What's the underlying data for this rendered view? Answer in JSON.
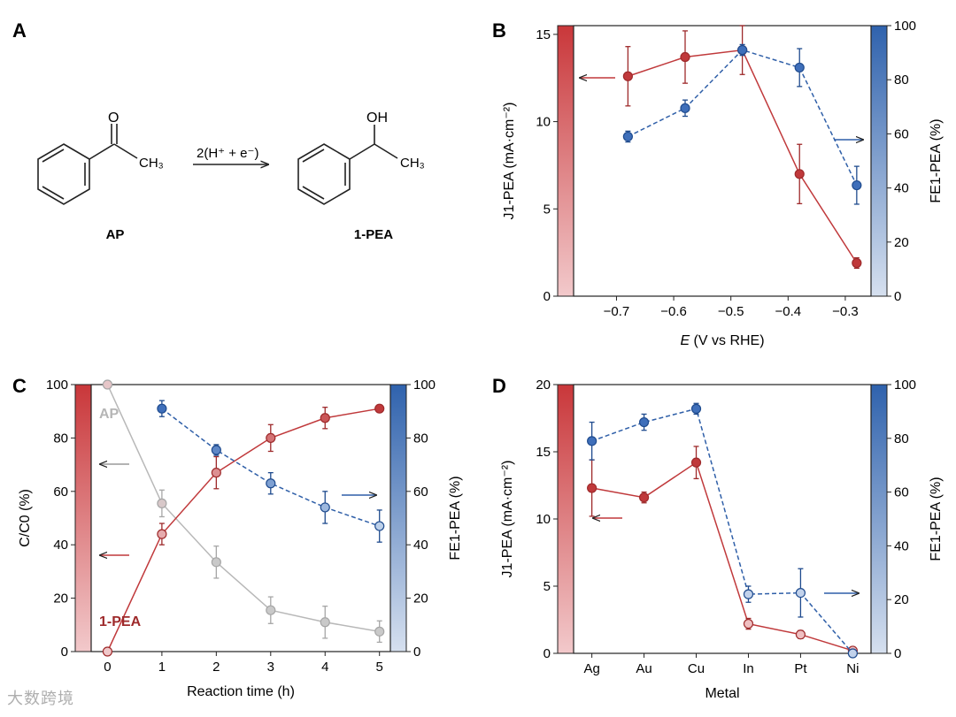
{
  "panel_labels": {
    "a": "A",
    "b": "B",
    "c": "C",
    "d": "D"
  },
  "scheme": {
    "reactant": "AP",
    "product": "1-PEA",
    "reagent": "2(H⁺ + e⁻)",
    "groups": {
      "oxo": "O",
      "methyl": "CH₃",
      "hydroxy": "OH"
    }
  },
  "watermark": "大数跨境",
  "colors": {
    "red": "#c0393b",
    "red_dark": "#9e2a2b",
    "blue": "#2f5fa8",
    "blue_dark": "#1f4b8e",
    "gray": "#b8b8b8"
  },
  "chart_data": [
    {
      "panel": "B",
      "type": "line",
      "xlabel": "E (V vs RHE)",
      "ylabel_left": "J1-PEA (mA·cm⁻²)",
      "ylabel_right": "FE1-PEA (%)",
      "xlim": [
        -0.775,
        -0.255
      ],
      "ylim_left": [
        0,
        15.5
      ],
      "ylim_right": [
        0,
        100
      ],
      "x_ticks": [
        "−0.7",
        "−0.6",
        "−0.5",
        "−0.4",
        "−0.3"
      ],
      "x_tick_values": [
        -0.7,
        -0.6,
        -0.5,
        -0.4,
        -0.3
      ],
      "y_ticks_left": [
        0,
        5,
        10,
        15
      ],
      "y_ticks_right": [
        0,
        20,
        40,
        60,
        80,
        100
      ],
      "series": [
        {
          "axis": "left",
          "style": "solid",
          "color": "red",
          "x": [
            -0.68,
            -0.58,
            -0.48,
            -0.38,
            -0.28
          ],
          "y": [
            12.6,
            13.7,
            14.1,
            7.0,
            1.9
          ],
          "err": [
            1.7,
            1.5,
            1.4,
            1.7,
            0.3
          ]
        },
        {
          "axis": "right",
          "style": "dashed",
          "color": "blue",
          "x": [
            -0.68,
            -0.58,
            -0.48,
            -0.38,
            -0.28
          ],
          "y": [
            59,
            69.5,
            91,
            84.5,
            41
          ],
          "err": [
            2,
            3,
            2,
            7,
            7
          ]
        }
      ]
    },
    {
      "panel": "C",
      "type": "line",
      "xlabel": "Reaction time (h)",
      "ylabel_left": "C/C0 (%)",
      "ylabel_right": "FE1-PEA (%)",
      "xlim": [
        -0.3,
        5.2
      ],
      "ylim_left": [
        0,
        100
      ],
      "ylim_right": [
        0,
        100
      ],
      "x_ticks": [
        0,
        1,
        2,
        3,
        4,
        5
      ],
      "y_ticks_left": [
        0,
        20,
        40,
        60,
        80,
        100
      ],
      "y_ticks_right": [
        0,
        20,
        40,
        60,
        80,
        100
      ],
      "annotations": [
        "AP",
        "1-PEA"
      ],
      "series": [
        {
          "name": "AP",
          "axis": "left",
          "style": "solid",
          "color": "gray",
          "x": [
            0,
            1,
            2,
            3,
            4,
            5
          ],
          "y": [
            100,
            55.5,
            33.5,
            15.5,
            11,
            7.5
          ],
          "err": [
            0,
            5,
            6,
            5,
            6,
            4
          ]
        },
        {
          "name": "1-PEA",
          "axis": "left",
          "style": "solid",
          "color": "red",
          "x": [
            0,
            1,
            2,
            3,
            4,
            5
          ],
          "y": [
            0,
            44,
            67,
            80,
            87.5,
            91
          ],
          "err": [
            0,
            4,
            6,
            5,
            4,
            1
          ]
        },
        {
          "axis": "right",
          "style": "dashed",
          "color": "blue",
          "x": [
            1,
            2,
            3,
            4,
            5
          ],
          "y": [
            91,
            75.5,
            63,
            54,
            47
          ],
          "err": [
            3,
            2,
            4,
            6,
            6
          ]
        }
      ]
    },
    {
      "panel": "D",
      "type": "line",
      "xlabel": "Metal",
      "ylabel_left": "J1-PEA (mA·cm⁻²)",
      "ylabel_right": "FE1-PEA (%)",
      "categories": [
        "Ag",
        "Au",
        "Cu",
        "In",
        "Pt",
        "Ni"
      ],
      "ylim_left": [
        0,
        20
      ],
      "ylim_right": [
        0,
        100
      ],
      "y_ticks_left": [
        0,
        5,
        10,
        15,
        20
      ],
      "y_ticks_right": [
        0,
        20,
        40,
        60,
        80,
        100
      ],
      "series": [
        {
          "axis": "left",
          "style": "solid",
          "color": "red",
          "y": [
            12.3,
            11.6,
            14.2,
            2.2,
            1.4,
            0.2
          ],
          "err": [
            2.1,
            0.4,
            1.2,
            0.4,
            0.3,
            0.1
          ]
        },
        {
          "axis": "right",
          "style": "dashed",
          "color": "blue",
          "y": [
            79,
            86,
            91,
            22,
            22.5,
            0
          ],
          "err": [
            7,
            3,
            2,
            3,
            9,
            0
          ]
        }
      ]
    }
  ]
}
